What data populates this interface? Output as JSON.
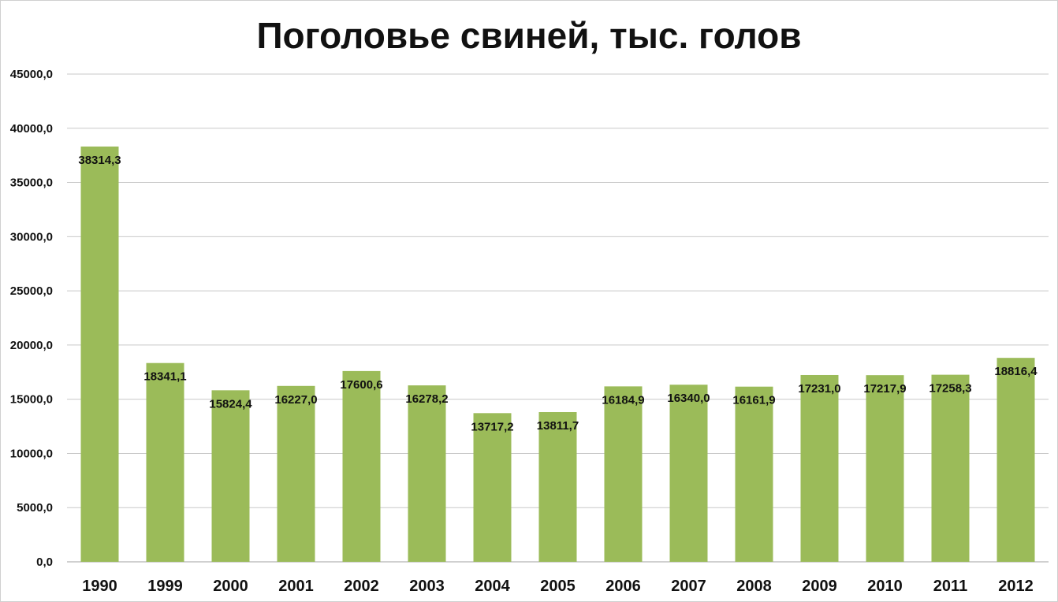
{
  "chart_data": {
    "type": "bar",
    "title": "Поголовье свиней, тыс. голов",
    "xlabel": "",
    "ylabel": "",
    "categories": [
      "1990",
      "1999",
      "2000",
      "2001",
      "2002",
      "2003",
      "2004",
      "2005",
      "2006",
      "2007",
      "2008",
      "2009",
      "2010",
      "2011",
      "2012"
    ],
    "values": [
      38314.3,
      18341.1,
      15824.4,
      16227.0,
      17600.6,
      16278.2,
      13717.2,
      13811.7,
      16184.9,
      16340.0,
      16161.9,
      17231.0,
      17217.9,
      17258.3,
      18816.4
    ],
    "data_labels": [
      "38314,3",
      "18341,1",
      "15824,4",
      "16227,0",
      "17600,6",
      "16278,2",
      "13717,2",
      "13811,7",
      "16184,9",
      "16340,0",
      "16161,9",
      "17231,0",
      "17217,9",
      "17258,3",
      "18816,4"
    ],
    "yticks": [
      0,
      5000,
      10000,
      15000,
      20000,
      25000,
      30000,
      35000,
      40000,
      45000
    ],
    "ytick_labels": [
      "0,0",
      "5000,0",
      "10000,0",
      "15000,0",
      "20000,0",
      "25000,0",
      "30000,0",
      "35000,0",
      "40000,0",
      "45000,0"
    ],
    "ylim": [
      0,
      45000
    ],
    "grid": true,
    "legend": "none",
    "bar_color": "#9bbb59",
    "grid_color": "#c8c8c8"
  }
}
